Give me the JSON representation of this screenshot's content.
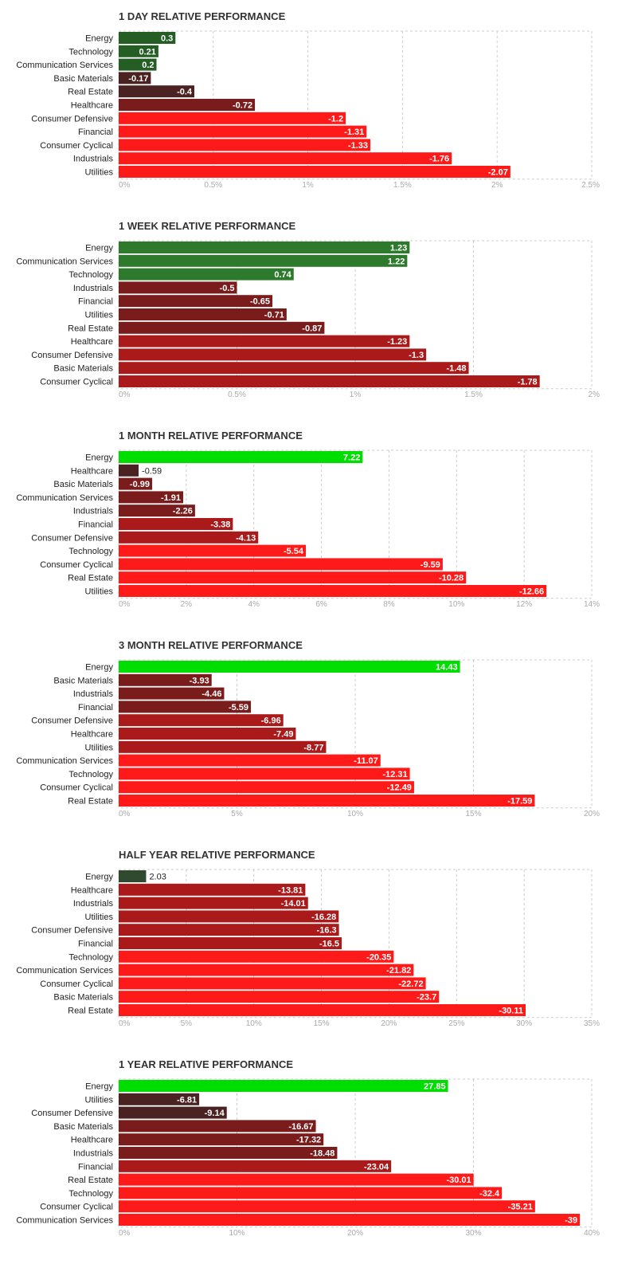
{
  "colors": {
    "strong_green": "#00dd00",
    "dark_green": "#245e24",
    "small_green": "#2d7a2d",
    "dark_brown": "#4a2222",
    "maroon": "#7a1c1c",
    "dark_red": "#aa1a1a",
    "red": "#ff1a1a"
  },
  "chart_data": [
    {
      "type": "bar",
      "orientation": "horizontal",
      "title": "1 DAY RELATIVE PERFORMANCE",
      "categories": [
        "Energy",
        "Technology",
        "Communication Services",
        "Basic Materials",
        "Real Estate",
        "Healthcare",
        "Consumer Defensive",
        "Financial",
        "Consumer Cyclical",
        "Industrials",
        "Utilities"
      ],
      "values": [
        0.3,
        0.21,
        0.2,
        -0.17,
        -0.4,
        -0.72,
        -1.2,
        -1.31,
        -1.33,
        -1.76,
        -2.07
      ],
      "value_labels": [
        "0.3",
        "0.21",
        "0.2",
        "-0.17",
        "-0.4",
        "-0.72",
        "-1.2",
        "-1.31",
        "-1.33",
        "-1.76",
        "-2.07"
      ],
      "bar_colors": [
        "#245e24",
        "#245e24",
        "#245e24",
        "#4a2222",
        "#4a2222",
        "#7a1c1c",
        "#ff1a1a",
        "#ff1a1a",
        "#ff1a1a",
        "#ff1a1a",
        "#ff1a1a"
      ],
      "xlim": [
        0,
        2.5
      ],
      "ticks": [
        0,
        0.5,
        1,
        1.5,
        2,
        2.5
      ],
      "tick_labels": [
        "0%",
        "0.5%",
        "1%",
        "1.5%",
        "2%",
        "2.5%"
      ]
    },
    {
      "type": "bar",
      "orientation": "horizontal",
      "title": "1 WEEK RELATIVE PERFORMANCE",
      "categories": [
        "Energy",
        "Communication Services",
        "Technology",
        "Industrials",
        "Financial",
        "Utilities",
        "Real Estate",
        "Healthcare",
        "Consumer Defensive",
        "Basic Materials",
        "Consumer Cyclical"
      ],
      "values": [
        1.23,
        1.22,
        0.74,
        -0.5,
        -0.65,
        -0.71,
        -0.87,
        -1.23,
        -1.3,
        -1.48,
        -1.78
      ],
      "value_labels": [
        "1.23",
        "1.22",
        "0.74",
        "-0.5",
        "-0.65",
        "-0.71",
        "-0.87",
        "-1.23",
        "-1.3",
        "-1.48",
        "-1.78"
      ],
      "bar_colors": [
        "#2d7a2d",
        "#2d7a2d",
        "#2d7a2d",
        "#7a1c1c",
        "#7a1c1c",
        "#7a1c1c",
        "#7a1c1c",
        "#aa1a1a",
        "#aa1a1a",
        "#aa1a1a",
        "#aa1a1a"
      ],
      "xlim": [
        0,
        2
      ],
      "ticks": [
        0,
        0.5,
        1,
        1.5,
        2
      ],
      "tick_labels": [
        "0%",
        "0.5%",
        "1%",
        "1.5%",
        "2%"
      ]
    },
    {
      "type": "bar",
      "orientation": "horizontal",
      "title": "1 MONTH RELATIVE PERFORMANCE",
      "categories": [
        "Energy",
        "Healthcare",
        "Basic Materials",
        "Communication Services",
        "Industrials",
        "Financial",
        "Consumer Defensive",
        "Technology",
        "Consumer Cyclical",
        "Real Estate",
        "Utilities"
      ],
      "values": [
        7.22,
        -0.59,
        -0.99,
        -1.91,
        -2.26,
        -3.38,
        -4.13,
        -5.54,
        -9.59,
        -10.28,
        -12.66
      ],
      "value_labels": [
        "7.22",
        "-0.59",
        "-0.99",
        "-1.91",
        "-2.26",
        "-3.38",
        "-4.13",
        "-5.54",
        "-9.59",
        "-10.28",
        "-12.66"
      ],
      "bar_colors": [
        "#00dd00",
        "#4a2222",
        "#7a1c1c",
        "#7a1c1c",
        "#7a1c1c",
        "#aa1a1a",
        "#aa1a1a",
        "#ff1a1a",
        "#ff1a1a",
        "#ff1a1a",
        "#ff1a1a"
      ],
      "xlim": [
        0,
        14
      ],
      "ticks": [
        0,
        2,
        4,
        6,
        8,
        10,
        12,
        14
      ],
      "tick_labels": [
        "0%",
        "2%",
        "4%",
        "6%",
        "8%",
        "10%",
        "12%",
        "14%"
      ]
    },
    {
      "type": "bar",
      "orientation": "horizontal",
      "title": "3 MONTH RELATIVE PERFORMANCE",
      "categories": [
        "Energy",
        "Basic Materials",
        "Industrials",
        "Financial",
        "Consumer Defensive",
        "Healthcare",
        "Utilities",
        "Communication Services",
        "Technology",
        "Consumer Cyclical",
        "Real Estate"
      ],
      "values": [
        14.43,
        -3.93,
        -4.46,
        -5.59,
        -6.96,
        -7.49,
        -8.77,
        -11.07,
        -12.31,
        -12.49,
        -17.59
      ],
      "value_labels": [
        "14.43",
        "-3.93",
        "-4.46",
        "-5.59",
        "-6.96",
        "-7.49",
        "-8.77",
        "-11.07",
        "-12.31",
        "-12.49",
        "-17.59"
      ],
      "bar_colors": [
        "#00dd00",
        "#7a1c1c",
        "#7a1c1c",
        "#7a1c1c",
        "#aa1a1a",
        "#aa1a1a",
        "#aa1a1a",
        "#ff1a1a",
        "#ff1a1a",
        "#ff1a1a",
        "#ff1a1a"
      ],
      "xlim": [
        0,
        20
      ],
      "ticks": [
        0,
        5,
        10,
        15,
        20
      ],
      "tick_labels": [
        "0%",
        "5%",
        "10%",
        "15%",
        "20%"
      ]
    },
    {
      "type": "bar",
      "orientation": "horizontal",
      "title": "HALF YEAR RELATIVE PERFORMANCE",
      "categories": [
        "Energy",
        "Healthcare",
        "Industrials",
        "Utilities",
        "Consumer Defensive",
        "Financial",
        "Technology",
        "Communication Services",
        "Consumer Cyclical",
        "Basic Materials",
        "Real Estate"
      ],
      "values": [
        2.03,
        -13.81,
        -14.01,
        -16.28,
        -16.3,
        -16.5,
        -20.35,
        -21.82,
        -22.72,
        -23.7,
        -30.11
      ],
      "value_labels": [
        "2.03",
        "-13.81",
        "-14.01",
        "-16.28",
        "-16.3",
        "-16.5",
        "-20.35",
        "-21.82",
        "-22.72",
        "-23.7",
        "-30.11"
      ],
      "bar_colors": [
        "#2f4a2f",
        "#aa1a1a",
        "#aa1a1a",
        "#aa1a1a",
        "#aa1a1a",
        "#aa1a1a",
        "#ff1a1a",
        "#ff1a1a",
        "#ff1a1a",
        "#ff1a1a",
        "#ff1a1a"
      ],
      "xlim": [
        0,
        35
      ],
      "ticks": [
        0,
        5,
        10,
        15,
        20,
        25,
        30,
        35
      ],
      "tick_labels": [
        "0%",
        "5%",
        "10%",
        "15%",
        "20%",
        "25%",
        "30%",
        "35%"
      ]
    },
    {
      "type": "bar",
      "orientation": "horizontal",
      "title": "1 YEAR RELATIVE PERFORMANCE",
      "categories": [
        "Energy",
        "Utilities",
        "Consumer Defensive",
        "Basic Materials",
        "Healthcare",
        "Industrials",
        "Financial",
        "Real Estate",
        "Technology",
        "Consumer Cyclical",
        "Communication Services"
      ],
      "values": [
        27.85,
        -6.81,
        -9.14,
        -16.67,
        -17.32,
        -18.48,
        -23.04,
        -30.01,
        -32.4,
        -35.21,
        -39
      ],
      "value_labels": [
        "27.85",
        "-6.81",
        "-9.14",
        "-16.67",
        "-17.32",
        "-18.48",
        "-23.04",
        "-30.01",
        "-32.4",
        "-35.21",
        "-39"
      ],
      "bar_colors": [
        "#00dd00",
        "#4a2222",
        "#4a2222",
        "#7a1c1c",
        "#7a1c1c",
        "#7a1c1c",
        "#aa1a1a",
        "#ff1a1a",
        "#ff1a1a",
        "#ff1a1a",
        "#ff1a1a"
      ],
      "xlim": [
        0,
        40
      ],
      "ticks": [
        0,
        10,
        20,
        30,
        40
      ],
      "tick_labels": [
        "0%",
        "10%",
        "20%",
        "30%",
        "40%"
      ]
    }
  ]
}
